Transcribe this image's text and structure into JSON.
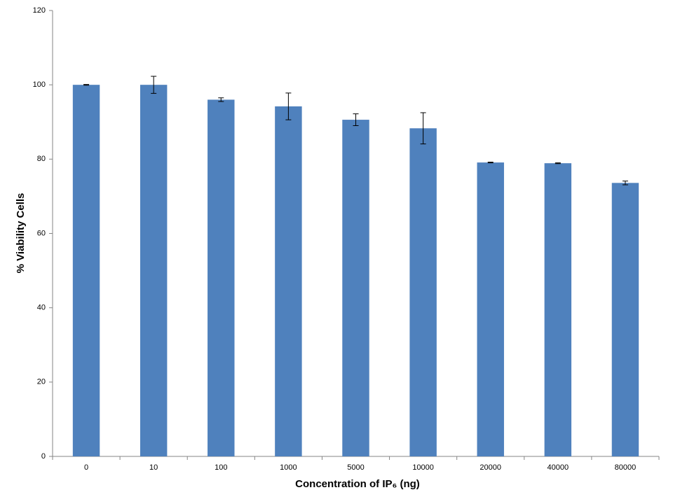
{
  "chart_data": {
    "type": "bar",
    "x_label": "Concentration of IP₆ (ng)",
    "y_label": "% Viability Cells",
    "categories": [
      "0",
      "10",
      "100",
      "1000",
      "5000",
      "10000",
      "20000",
      "40000",
      "80000"
    ],
    "values": [
      100,
      100,
      96,
      94.2,
      90.6,
      88.3,
      79.1,
      78.9,
      73.6
    ],
    "errors": [
      0.1,
      2.3,
      0.5,
      3.6,
      1.6,
      4.2,
      0.1,
      0.1,
      0.5
    ],
    "color": "#4f81bd",
    "ylim": [
      0,
      120
    ],
    "yticks": [
      0,
      20,
      40,
      60,
      80,
      100,
      120
    ],
    "grid": false
  }
}
